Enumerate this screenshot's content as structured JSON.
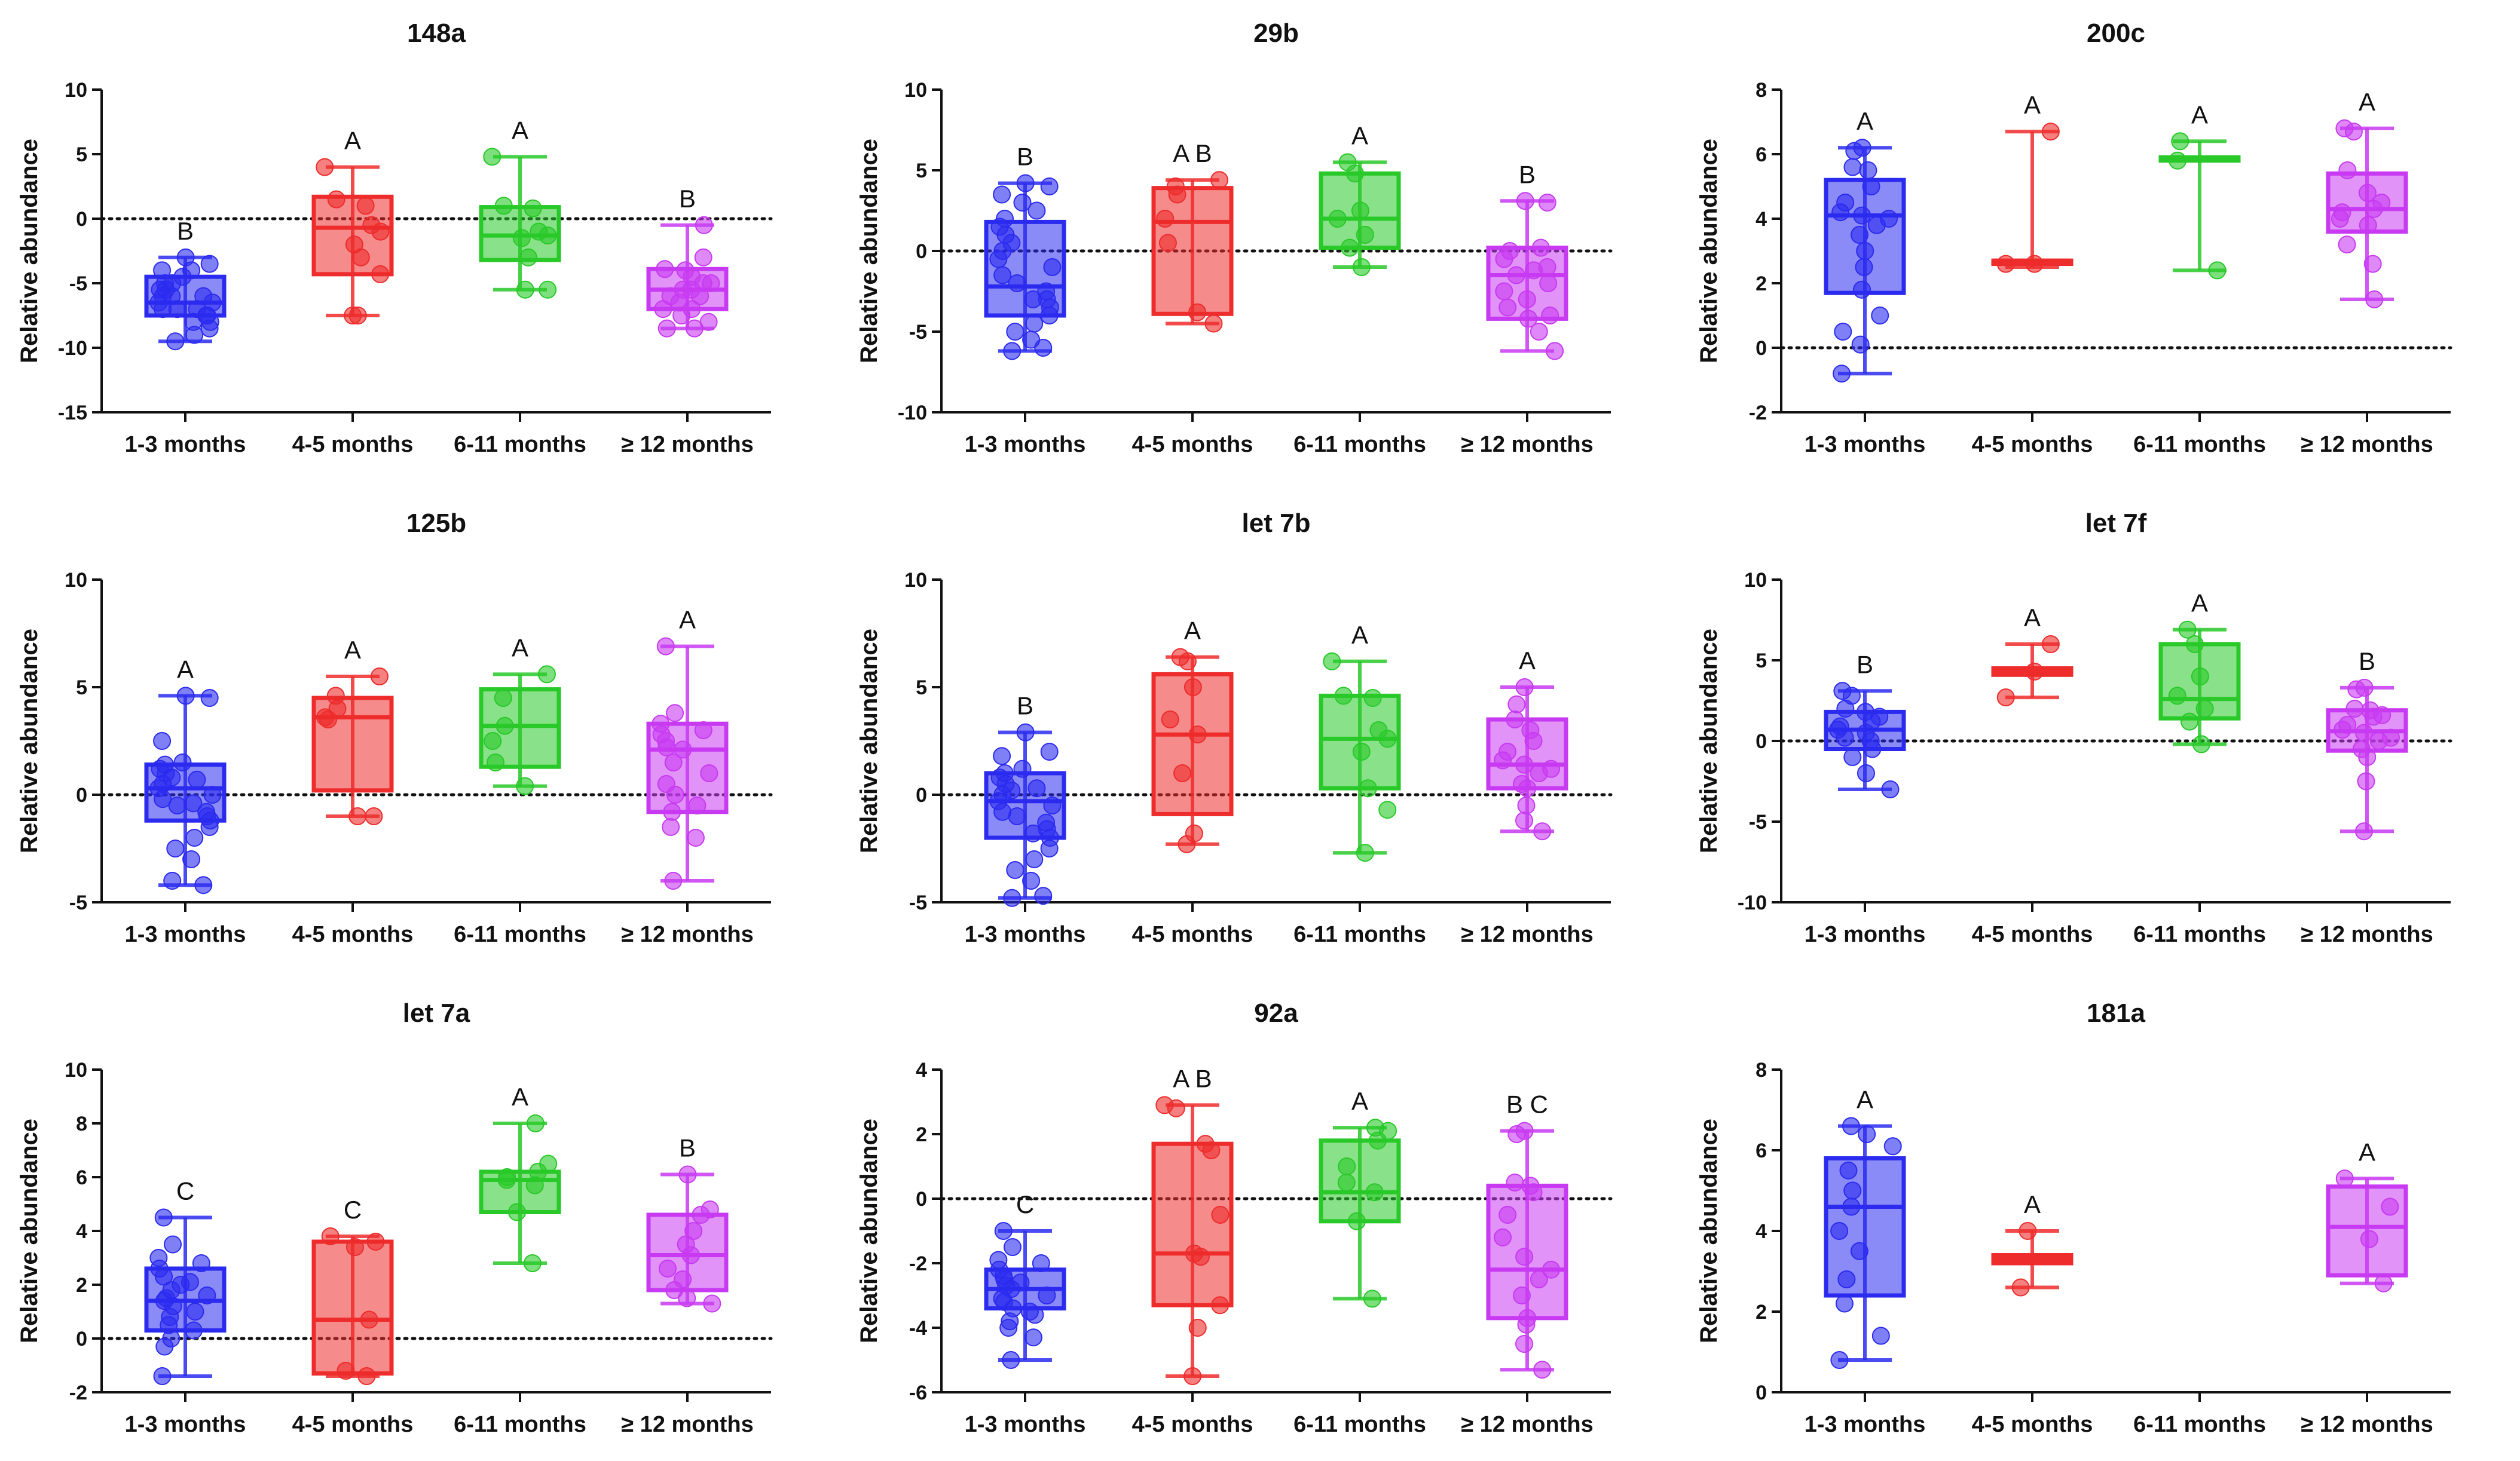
{
  "figure": {
    "colors": {
      "1-3 months": "#2b2bf0",
      "4-5 months": "#ee2c2c",
      "6-11 months": "#28c928",
      "≥ 12 months": "#c83af2"
    }
  },
  "chart_data": [
    {
      "type": "boxplot",
      "title": "148a",
      "ylabel": "Relative abundance",
      "ylim": [
        -15,
        10
      ],
      "yticks": [
        -15,
        -10,
        -5,
        0,
        5,
        10
      ],
      "reference_line": 0,
      "categories": [
        "1-3 months",
        "4-5 months",
        "6-11 months",
        "≥ 12 months"
      ],
      "boxes": [
        {
          "category": "1-3 months",
          "min": -9.5,
          "q1": -7.5,
          "median": -6.5,
          "q3": -4.5,
          "max": -3,
          "label": "B",
          "points": [
            -3,
            -3.5,
            -4,
            -4.5,
            -5,
            -5.5,
            -5.5,
            -6,
            -6,
            -6.5,
            -6.5,
            -7,
            -7,
            -7.5,
            -7.5,
            -8,
            -8.5,
            -9,
            -9.5,
            -4,
            -5,
            -6,
            -7,
            -8
          ]
        },
        {
          "category": "4-5 months",
          "min": -7.5,
          "q1": -4.3,
          "median": -0.7,
          "q3": 1.7,
          "max": 4,
          "label": "A",
          "points": [
            4,
            1.5,
            1,
            -0.5,
            -1,
            -2,
            -3,
            -4.3,
            -7.5,
            -7.5
          ]
        },
        {
          "category": "6-11 months",
          "min": -5.5,
          "q1": -3.2,
          "median": -1.3,
          "q3": 0.9,
          "max": 4.8,
          "label": "A",
          "points": [
            4.8,
            1,
            0.8,
            -1,
            -1.3,
            -1.5,
            -3,
            -5.5,
            -5.5
          ]
        },
        {
          "category": "≥ 12 months",
          "min": -8.5,
          "q1": -7,
          "median": -5.5,
          "q3": -3.9,
          "max": -0.5,
          "label": "B",
          "points": [
            -0.5,
            -3,
            -3.9,
            -4,
            -4.5,
            -5,
            -5.5,
            -5.5,
            -6,
            -6.5,
            -7,
            -7,
            -7.5,
            -8.5,
            -8.5,
            -8,
            -5,
            -6
          ]
        }
      ]
    },
    {
      "type": "boxplot",
      "title": "29b",
      "ylabel": "Relative abundance",
      "ylim": [
        -10,
        10
      ],
      "yticks": [
        -10,
        -5,
        0,
        5,
        10
      ],
      "reference_line": 0,
      "categories": [
        "1-3 months",
        "4-5 months",
        "6-11 months",
        "≥ 12 months"
      ],
      "boxes": [
        {
          "category": "1-3 months",
          "min": -6.2,
          "q1": -4,
          "median": -2.2,
          "q3": 1.8,
          "max": 4.2,
          "label": "B",
          "points": [
            4.2,
            4,
            3.5,
            3,
            2,
            1.5,
            1,
            0.5,
            0,
            -0.5,
            -1,
            -1.5,
            -2,
            -2.5,
            -3,
            -3.5,
            -4,
            -4.5,
            -5,
            -5.5,
            -6.2,
            -6,
            2.5,
            -3
          ]
        },
        {
          "category": "4-5 months",
          "min": -4.5,
          "q1": -3.9,
          "median": 1.8,
          "q3": 3.9,
          "max": 4.4,
          "label": "A B",
          "points": [
            4.4,
            4,
            3.5,
            2,
            0.5,
            -3.8,
            -4.5
          ]
        },
        {
          "category": "6-11 months",
          "min": -1,
          "q1": 0.2,
          "median": 2,
          "q3": 4.8,
          "max": 5.5,
          "label": "A",
          "points": [
            5.5,
            4.8,
            2.5,
            2,
            1,
            0.2,
            -1
          ]
        },
        {
          "category": "≥ 12 months",
          "min": -6.2,
          "q1": -4.2,
          "median": -1.5,
          "q3": 0.2,
          "max": 3.1,
          "label": "B",
          "points": [
            3.1,
            3,
            0.2,
            0,
            -0.5,
            -1,
            -1.5,
            -2,
            -2.5,
            -3,
            -3.5,
            -4,
            -4.2,
            -5,
            -6.2,
            -1.2
          ]
        }
      ]
    },
    {
      "type": "boxplot",
      "title": "200c",
      "ylabel": "Relative abundance",
      "ylim": [
        -2,
        8
      ],
      "yticks": [
        -2,
        0,
        2,
        4,
        6,
        8
      ],
      "reference_line": 0,
      "categories": [
        "1-3 months",
        "4-5 months",
        "6-11 months",
        "≥ 12 months"
      ],
      "boxes": [
        {
          "category": "1-3 months",
          "min": -0.8,
          "q1": 1.7,
          "median": 4.1,
          "q3": 5.2,
          "max": 6.2,
          "label": "A",
          "points": [
            6.2,
            6.1,
            5.6,
            5.5,
            5,
            4.5,
            4.2,
            4.1,
            4,
            3.8,
            3.5,
            3,
            2.5,
            1.8,
            1,
            0.5,
            0.1,
            -0.8
          ]
        },
        {
          "category": "4-5 months",
          "min": 2.5,
          "q1": 2.6,
          "median": 2.7,
          "q3": 2.7,
          "max": 6.7,
          "label": "A",
          "points": [
            6.7,
            2.6,
            2.6
          ]
        },
        {
          "category": "6-11 months",
          "min": 2.4,
          "q1": 5.8,
          "median": 5.85,
          "q3": 5.9,
          "max": 6.4,
          "label": "A",
          "points": [
            6.4,
            5.8,
            2.4
          ]
        },
        {
          "category": "≥ 12 months",
          "min": 1.5,
          "q1": 3.6,
          "median": 4.3,
          "q3": 5.4,
          "max": 6.8,
          "label": "A",
          "points": [
            6.8,
            6.7,
            5.5,
            4.8,
            4.5,
            4.3,
            4.2,
            4,
            3.8,
            3.2,
            2.6,
            1.5
          ]
        }
      ]
    },
    {
      "type": "boxplot",
      "title": "125b",
      "ylabel": "Relative abundance",
      "ylim": [
        -5,
        10
      ],
      "yticks": [
        -5,
        0,
        5,
        10
      ],
      "reference_line": 0,
      "categories": [
        "1-3 months",
        "4-5 months",
        "6-11 months",
        "≥ 12 months"
      ],
      "boxes": [
        {
          "category": "1-3 months",
          "min": -4.2,
          "q1": -1.2,
          "median": 0.3,
          "q3": 1.4,
          "max": 4.6,
          "label": "A",
          "points": [
            4.6,
            4.5,
            2.5,
            1.5,
            1.4,
            1.2,
            1,
            0.8,
            0.5,
            0.3,
            0,
            -0.2,
            -0.5,
            -0.8,
            -1,
            -1.2,
            -1.5,
            -2,
            -2.5,
            -3,
            -4,
            -4.2,
            0.7,
            -0.4
          ]
        },
        {
          "category": "4-5 months",
          "min": -1,
          "q1": 0.2,
          "median": 3.6,
          "q3": 4.5,
          "max": 5.5,
          "label": "A",
          "points": [
            5.5,
            4.6,
            4,
            3.6,
            3.5,
            -1,
            -1
          ]
        },
        {
          "category": "6-11 months",
          "min": 0.4,
          "q1": 1.3,
          "median": 3.2,
          "q3": 4.9,
          "max": 5.6,
          "label": "A",
          "points": [
            5.6,
            4.5,
            3.2,
            2.5,
            1.5,
            0.4
          ]
        },
        {
          "category": "≥ 12 months",
          "min": -4,
          "q1": -0.8,
          "median": 2.1,
          "q3": 3.3,
          "max": 6.9,
          "label": "A",
          "points": [
            6.9,
            3.8,
            3.3,
            3,
            2.8,
            2.5,
            2.1,
            1.5,
            1,
            0.5,
            0,
            -0.5,
            -0.8,
            -1.5,
            -2,
            -4,
            2.2
          ]
        }
      ]
    },
    {
      "type": "boxplot",
      "title": "let 7b",
      "ylabel": "Relative abundance",
      "ylim": [
        -5,
        10
      ],
      "yticks": [
        -5,
        0,
        5,
        10
      ],
      "reference_line": 0,
      "categories": [
        "1-3 months",
        "4-5 months",
        "6-11 months",
        "≥ 12 months"
      ],
      "boxes": [
        {
          "category": "1-3 months",
          "min": -4.8,
          "q1": -2,
          "median": -0.3,
          "q3": 1,
          "max": 2.9,
          "label": "B",
          "points": [
            2.9,
            2,
            1.8,
            1.2,
            1,
            0.8,
            0.5,
            0.2,
            0,
            -0.3,
            -0.5,
            -0.8,
            -1,
            -1.3,
            -1.6,
            -2,
            -2.5,
            -3,
            -3.5,
            -4,
            -4.8,
            -4.7,
            0.3,
            -1.8
          ]
        },
        {
          "category": "4-5 months",
          "min": -2.3,
          "q1": -0.9,
          "median": 2.8,
          "q3": 5.6,
          "max": 6.4,
          "label": "A",
          "points": [
            6.4,
            6.2,
            5,
            3.5,
            2.8,
            1,
            -1.8,
            -2.3
          ]
        },
        {
          "category": "6-11 months",
          "min": -2.7,
          "q1": 0.3,
          "median": 2.6,
          "q3": 4.6,
          "max": 6.2,
          "label": "A",
          "points": [
            6.2,
            4.6,
            4.5,
            3,
            2.6,
            2,
            0.3,
            -0.7,
            -2.7
          ]
        },
        {
          "category": "≥ 12 months",
          "min": -1.7,
          "q1": 0.3,
          "median": 1.4,
          "q3": 3.5,
          "max": 5,
          "label": "A",
          "points": [
            5,
            4.2,
            3.5,
            3,
            2.5,
            2,
            1.6,
            1.4,
            1.2,
            1,
            0.5,
            0.3,
            -0.5,
            -1.2,
            -1.7
          ]
        }
      ]
    },
    {
      "type": "boxplot",
      "title": "let 7f",
      "ylabel": "Relative abundance",
      "ylim": [
        -10,
        10
      ],
      "yticks": [
        -10,
        -5,
        0,
        5,
        10
      ],
      "reference_line": 0,
      "categories": [
        "1-3 months",
        "4-5 months",
        "6-11 months",
        "≥ 12 months"
      ],
      "boxes": [
        {
          "category": "1-3 months",
          "min": -3,
          "q1": -0.5,
          "median": 0.7,
          "q3": 1.8,
          "max": 3.1,
          "label": "B",
          "points": [
            3.1,
            2.8,
            2,
            1.8,
            1.5,
            1.2,
            0.9,
            0.7,
            0.5,
            0.2,
            0,
            -0.5,
            -1,
            -2,
            -3
          ]
        },
        {
          "category": "4-5 months",
          "min": 2.7,
          "q1": 4.1,
          "median": 4.3,
          "q3": 4.5,
          "max": 6,
          "label": "A",
          "points": [
            6,
            4.3,
            2.7
          ]
        },
        {
          "category": "6-11 months",
          "min": -0.2,
          "q1": 1.4,
          "median": 2.6,
          "q3": 6,
          "max": 6.9,
          "label": "A",
          "points": [
            6.9,
            6,
            4,
            2.8,
            2,
            1.2,
            -0.2
          ]
        },
        {
          "category": "≥ 12 months",
          "min": -5.6,
          "q1": -0.6,
          "median": 0.6,
          "q3": 1.9,
          "max": 3.3,
          "label": "B",
          "points": [
            3.3,
            3.2,
            2,
            1.9,
            1.5,
            1,
            0.7,
            0.5,
            0.2,
            0,
            -0.5,
            -1,
            -2.5,
            -5.6,
            1.6
          ]
        }
      ]
    },
    {
      "type": "boxplot",
      "title": "let 7a",
      "ylabel": "Relative abundance",
      "ylim": [
        -2,
        10
      ],
      "yticks": [
        -2,
        0,
        2,
        4,
        6,
        8,
        10
      ],
      "reference_line": 0,
      "categories": [
        "1-3 months",
        "4-5 months",
        "6-11 months",
        "≥ 12 months"
      ],
      "boxes": [
        {
          "category": "1-3 months",
          "min": -1.4,
          "q1": 0.3,
          "median": 1.4,
          "q3": 2.6,
          "max": 4.5,
          "label": "C",
          "points": [
            4.5,
            3.5,
            3,
            2.8,
            2.6,
            2.3,
            2,
            1.8,
            1.6,
            1.4,
            1.2,
            1,
            0.8,
            0.5,
            0.3,
            0,
            -0.3,
            -1.4,
            1.5,
            2.1
          ]
        },
        {
          "category": "4-5 months",
          "min": -1.4,
          "q1": -1.3,
          "median": 0.7,
          "q3": 3.6,
          "max": 3.8,
          "label": "C",
          "points": [
            3.8,
            3.6,
            3.4,
            0.7,
            -1.2,
            -1.4
          ]
        },
        {
          "category": "6-11 months",
          "min": 2.8,
          "q1": 4.7,
          "median": 5.9,
          "q3": 6.2,
          "max": 8,
          "label": "A",
          "points": [
            8,
            6.5,
            6.2,
            6,
            5.9,
            5.7,
            4.7,
            2.8
          ]
        },
        {
          "category": "≥ 12 months",
          "min": 1.3,
          "q1": 1.8,
          "median": 3.1,
          "q3": 4.6,
          "max": 6.1,
          "label": "B",
          "points": [
            6.1,
            4.8,
            4.6,
            4,
            3.5,
            3.1,
            2.6,
            2.2,
            1.8,
            1.5,
            1.3
          ]
        }
      ]
    },
    {
      "type": "boxplot",
      "title": "92a",
      "ylabel": "Relative abundance",
      "ylim": [
        -6,
        4
      ],
      "yticks": [
        -6,
        -4,
        -2,
        0,
        2,
        4
      ],
      "reference_line": 0,
      "categories": [
        "1-3 months",
        "4-5 months",
        "6-11 months",
        "≥ 12 months"
      ],
      "boxes": [
        {
          "category": "1-3 months",
          "min": -5,
          "q1": -3.4,
          "median": -2.8,
          "q3": -2.2,
          "max": -1,
          "label": "C",
          "points": [
            -1,
            -1.5,
            -1.9,
            -2,
            -2.2,
            -2.4,
            -2.6,
            -2.8,
            -3,
            -3.2,
            -3.4,
            -3.6,
            -3.8,
            -4,
            -4.3,
            -5,
            -2.5,
            -3.1,
            -2.7,
            -3.5
          ]
        },
        {
          "category": "4-5 months",
          "min": -5.5,
          "q1": -3.3,
          "median": -1.7,
          "q3": 1.7,
          "max": 2.9,
          "label": "A B",
          "points": [
            2.9,
            2.8,
            1.7,
            1.5,
            -0.5,
            -1.7,
            -1.8,
            -3.3,
            -4,
            -5.5
          ]
        },
        {
          "category": "6-11 months",
          "min": -3.1,
          "q1": -0.7,
          "median": 0.2,
          "q3": 1.8,
          "max": 2.2,
          "label": "A",
          "points": [
            2.2,
            2.1,
            1.8,
            1,
            0.5,
            0.2,
            -0.7,
            -3.1
          ]
        },
        {
          "category": "≥ 12 months",
          "min": -5.3,
          "q1": -3.7,
          "median": -2.2,
          "q3": 0.4,
          "max": 2.1,
          "label": "B C",
          "points": [
            2.1,
            2,
            0.5,
            0.4,
            0.2,
            -0.5,
            -1.2,
            -1.8,
            -2.2,
            -2.5,
            -3,
            -3.7,
            -3.9,
            -4.5,
            -5.3
          ]
        }
      ]
    },
    {
      "type": "boxplot",
      "title": "181a",
      "ylabel": "Relative abundance",
      "ylim": [
        0,
        8
      ],
      "yticks": [
        0,
        2,
        4,
        6,
        8
      ],
      "reference_line": null,
      "categories": [
        "1-3 months",
        "4-5 months",
        "6-11 months",
        "≥ 12 months"
      ],
      "boxes": [
        {
          "category": "1-3 months",
          "min": 0.8,
          "q1": 2.4,
          "median": 4.6,
          "q3": 5.8,
          "max": 6.6,
          "label": "A",
          "points": [
            6.6,
            6.4,
            6.1,
            5.5,
            5,
            4.6,
            4,
            3.5,
            2.8,
            2.2,
            1.4,
            0.8
          ]
        },
        {
          "category": "4-5 months",
          "min": 2.6,
          "q1": 3.2,
          "median": 3.3,
          "q3": 3.4,
          "max": 4,
          "label": "A",
          "points": [
            4,
            2.6
          ]
        },
        {
          "category": "≥ 12 months",
          "min": 2.7,
          "q1": 2.9,
          "median": 4.1,
          "q3": 5.1,
          "max": 5.3,
          "label": "A",
          "points": [
            5.3,
            4.6,
            3.8,
            2.7
          ]
        }
      ]
    }
  ]
}
